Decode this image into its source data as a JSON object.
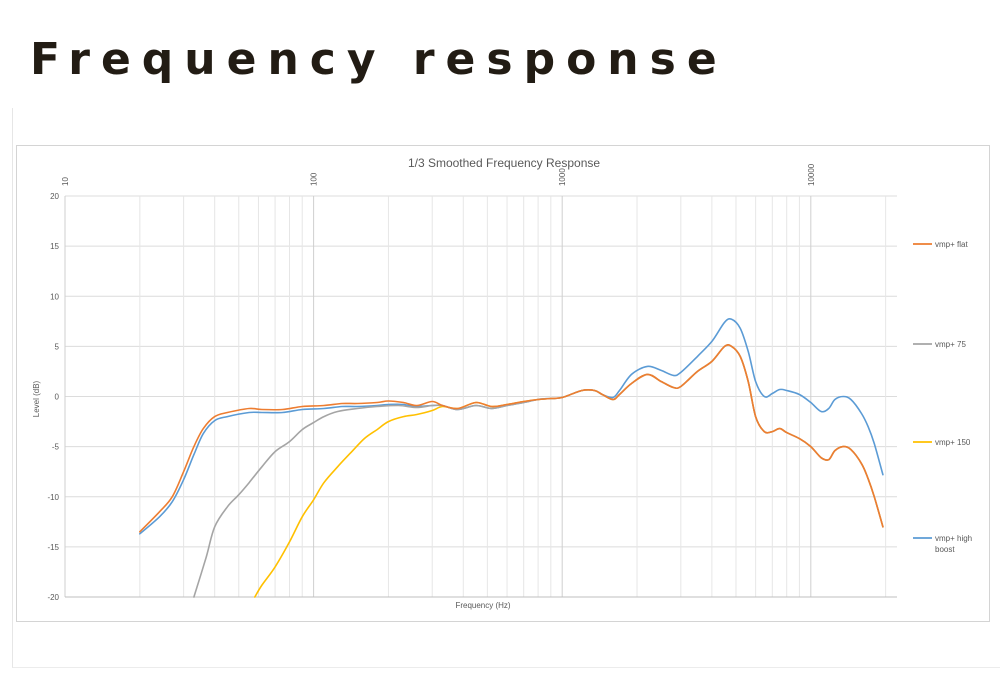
{
  "page_title": "Frequency response",
  "chart_data": {
    "type": "line",
    "title": "1/3 Smoothed Frequency Response",
    "xlabel": "Frequency (Hz)",
    "ylabel": "Level (dB)",
    "x_scale": "log",
    "xlim": [
      10,
      20000
    ],
    "ylim": [
      -20,
      20
    ],
    "x_ticks": [
      {
        "value": 10,
        "label": "10"
      },
      {
        "value": 100,
        "label": "100"
      },
      {
        "value": 1000,
        "label": "1000"
      },
      {
        "value": 10000,
        "label": "10000"
      }
    ],
    "y_ticks": [
      20,
      15,
      10,
      5,
      0,
      -5,
      -10,
      -15,
      -20
    ],
    "grid": true,
    "legend_position": "right",
    "series": [
      {
        "name": "vmp+ flat",
        "color": "#ed7d31",
        "points": [
          [
            20,
            -13.5
          ],
          [
            24,
            -11.5
          ],
          [
            27,
            -10
          ],
          [
            30,
            -7.5
          ],
          [
            33,
            -5
          ],
          [
            36,
            -3.2
          ],
          [
            40,
            -2
          ],
          [
            45,
            -1.6
          ],
          [
            55,
            -1.2
          ],
          [
            62,
            -1.3
          ],
          [
            75,
            -1.3
          ],
          [
            90,
            -1
          ],
          [
            110,
            -0.9
          ],
          [
            130,
            -0.7
          ],
          [
            150,
            -0.7
          ],
          [
            180,
            -0.6
          ],
          [
            200,
            -0.45
          ],
          [
            230,
            -0.6
          ],
          [
            260,
            -0.9
          ],
          [
            300,
            -0.5
          ],
          [
            330,
            -0.9
          ],
          [
            380,
            -1.2
          ],
          [
            450,
            -0.6
          ],
          [
            520,
            -1
          ],
          [
            600,
            -0.8
          ],
          [
            700,
            -0.5
          ],
          [
            800,
            -0.3
          ],
          [
            900,
            -0.2
          ],
          [
            1000,
            -0.1
          ],
          [
            1200,
            0.6
          ],
          [
            1350,
            0.6
          ],
          [
            1450,
            0.2
          ],
          [
            1600,
            -0.3
          ],
          [
            1700,
            0.2
          ],
          [
            1900,
            1.3
          ],
          [
            2200,
            2.2
          ],
          [
            2500,
            1.5
          ],
          [
            2800,
            0.9
          ],
          [
            3000,
            1
          ],
          [
            3500,
            2.5
          ],
          [
            4000,
            3.5
          ],
          [
            4500,
            5
          ],
          [
            4800,
            5
          ],
          [
            5200,
            4
          ],
          [
            5600,
            1.5
          ],
          [
            6000,
            -2
          ],
          [
            6500,
            -3.5
          ],
          [
            7000,
            -3.5
          ],
          [
            7500,
            -3.2
          ],
          [
            8000,
            -3.6
          ],
          [
            9000,
            -4.2
          ],
          [
            10000,
            -5
          ],
          [
            11000,
            -6.1
          ],
          [
            11800,
            -6.3
          ],
          [
            12500,
            -5.4
          ],
          [
            13500,
            -5
          ],
          [
            14500,
            -5.3
          ],
          [
            16000,
            -6.7
          ],
          [
            17000,
            -8.2
          ],
          [
            18000,
            -10
          ],
          [
            19500,
            -13
          ]
        ]
      },
      {
        "name": "vmp+ 75",
        "color": "#a5a5a5",
        "points": [
          [
            33,
            -20
          ],
          [
            37,
            -16
          ],
          [
            40,
            -13
          ],
          [
            45,
            -11
          ],
          [
            50,
            -9.8
          ],
          [
            55,
            -8.6
          ],
          [
            62,
            -7
          ],
          [
            70,
            -5.5
          ],
          [
            80,
            -4.5
          ],
          [
            90,
            -3.3
          ],
          [
            100,
            -2.6
          ],
          [
            110,
            -2
          ],
          [
            125,
            -1.5
          ],
          [
            150,
            -1.2
          ],
          [
            180,
            -1
          ],
          [
            220,
            -0.9
          ],
          [
            260,
            -1.1
          ],
          [
            300,
            -0.9
          ],
          [
            330,
            -0.9
          ],
          [
            380,
            -1.3
          ],
          [
            450,
            -0.9
          ],
          [
            520,
            -1.2
          ],
          [
            600,
            -0.9
          ],
          [
            700,
            -0.6
          ],
          [
            800,
            -0.3
          ],
          [
            900,
            -0.2
          ],
          [
            1000,
            -0.1
          ],
          [
            1200,
            0.6
          ],
          [
            1350,
            0.6
          ],
          [
            1450,
            0.2
          ],
          [
            1600,
            -0.3
          ],
          [
            1700,
            0.2
          ],
          [
            1900,
            1.3
          ],
          [
            2200,
            2.2
          ],
          [
            2500,
            1.5
          ],
          [
            2800,
            0.9
          ],
          [
            3000,
            1
          ],
          [
            3500,
            2.5
          ],
          [
            4000,
            3.5
          ],
          [
            4500,
            5
          ],
          [
            4800,
            5
          ],
          [
            5200,
            4
          ],
          [
            5600,
            1.5
          ],
          [
            6000,
            -2
          ],
          [
            6500,
            -3.5
          ],
          [
            7000,
            -3.5
          ],
          [
            7500,
            -3.2
          ],
          [
            8000,
            -3.6
          ],
          [
            9000,
            -4.2
          ],
          [
            10000,
            -5
          ],
          [
            11000,
            -6.1
          ],
          [
            11800,
            -6.3
          ],
          [
            12500,
            -5.4
          ],
          [
            13500,
            -5
          ],
          [
            14500,
            -5.3
          ],
          [
            16000,
            -6.7
          ],
          [
            17000,
            -8.2
          ],
          [
            18000,
            -10
          ],
          [
            19500,
            -13
          ]
        ]
      },
      {
        "name": "vmp+ 150",
        "color": "#ffc000",
        "points": [
          [
            58,
            -20
          ],
          [
            62,
            -18.8
          ],
          [
            70,
            -17
          ],
          [
            80,
            -14.5
          ],
          [
            90,
            -12
          ],
          [
            100,
            -10.3
          ],
          [
            110,
            -8.6
          ],
          [
            125,
            -7
          ],
          [
            140,
            -5.7
          ],
          [
            160,
            -4.2
          ],
          [
            180,
            -3.3
          ],
          [
            200,
            -2.5
          ],
          [
            230,
            -2
          ],
          [
            260,
            -1.8
          ],
          [
            300,
            -1.4
          ],
          [
            330,
            -1
          ],
          [
            380,
            -1.2
          ],
          [
            450,
            -0.6
          ],
          [
            520,
            -1
          ],
          [
            600,
            -0.8
          ],
          [
            700,
            -0.5
          ],
          [
            800,
            -0.3
          ],
          [
            900,
            -0.2
          ],
          [
            1000,
            -0.1
          ],
          [
            1200,
            0.6
          ],
          [
            1350,
            0.6
          ],
          [
            1450,
            0.2
          ],
          [
            1600,
            -0.3
          ],
          [
            1700,
            0.2
          ],
          [
            1900,
            1.3
          ],
          [
            2200,
            2.2
          ],
          [
            2500,
            1.5
          ],
          [
            2800,
            0.9
          ],
          [
            3000,
            1
          ],
          [
            3500,
            2.5
          ],
          [
            4000,
            3.5
          ],
          [
            4500,
            5
          ],
          [
            4800,
            5
          ],
          [
            5200,
            4
          ],
          [
            5600,
            1.5
          ],
          [
            6000,
            -2
          ],
          [
            6500,
            -3.5
          ],
          [
            7000,
            -3.5
          ],
          [
            7500,
            -3.2
          ],
          [
            8000,
            -3.6
          ],
          [
            9000,
            -4.2
          ],
          [
            10000,
            -5
          ],
          [
            11000,
            -6.1
          ],
          [
            11800,
            -6.3
          ],
          [
            12500,
            -5.4
          ],
          [
            13500,
            -5
          ],
          [
            14500,
            -5.3
          ],
          [
            16000,
            -6.7
          ],
          [
            17000,
            -8.2
          ],
          [
            18000,
            -10
          ],
          [
            19500,
            -13
          ]
        ]
      },
      {
        "name": "vmp+ high\nboost",
        "color": "#5b9bd5",
        "points": [
          [
            20,
            -13.7
          ],
          [
            24,
            -12
          ],
          [
            27,
            -10.5
          ],
          [
            30,
            -8.3
          ],
          [
            33,
            -5.8
          ],
          [
            36,
            -3.7
          ],
          [
            40,
            -2.4
          ],
          [
            45,
            -2
          ],
          [
            55,
            -1.6
          ],
          [
            62,
            -1.6
          ],
          [
            75,
            -1.6
          ],
          [
            90,
            -1.3
          ],
          [
            110,
            -1.2
          ],
          [
            130,
            -1
          ],
          [
            150,
            -1
          ],
          [
            180,
            -0.9
          ],
          [
            200,
            -0.8
          ],
          [
            230,
            -0.8
          ],
          [
            260,
            -1
          ],
          [
            300,
            -0.9
          ],
          [
            330,
            -0.9
          ],
          [
            380,
            -1.3
          ],
          [
            450,
            -0.9
          ],
          [
            520,
            -1.2
          ],
          [
            600,
            -0.9
          ],
          [
            700,
            -0.6
          ],
          [
            800,
            -0.3
          ],
          [
            900,
            -0.2
          ],
          [
            1000,
            -0.1
          ],
          [
            1200,
            0.6
          ],
          [
            1350,
            0.6
          ],
          [
            1450,
            0.2
          ],
          [
            1600,
            -0.1
          ],
          [
            1700,
            0.6
          ],
          [
            1900,
            2.2
          ],
          [
            2200,
            3
          ],
          [
            2500,
            2.6
          ],
          [
            2800,
            2.1
          ],
          [
            3000,
            2.4
          ],
          [
            3500,
            4
          ],
          [
            4000,
            5.5
          ],
          [
            4500,
            7.4
          ],
          [
            4800,
            7.7
          ],
          [
            5200,
            6.8
          ],
          [
            5600,
            4.5
          ],
          [
            6000,
            1.5
          ],
          [
            6500,
            0
          ],
          [
            7000,
            0.3
          ],
          [
            7500,
            0.7
          ],
          [
            8000,
            0.6
          ],
          [
            9000,
            0.2
          ],
          [
            10000,
            -0.6
          ],
          [
            11000,
            -1.5
          ],
          [
            11800,
            -1.2
          ],
          [
            12500,
            -0.3
          ],
          [
            13500,
            0
          ],
          [
            14500,
            -0.3
          ],
          [
            16000,
            -1.7
          ],
          [
            17000,
            -3
          ],
          [
            18000,
            -4.7
          ],
          [
            19500,
            -7.8
          ]
        ]
      }
    ]
  }
}
